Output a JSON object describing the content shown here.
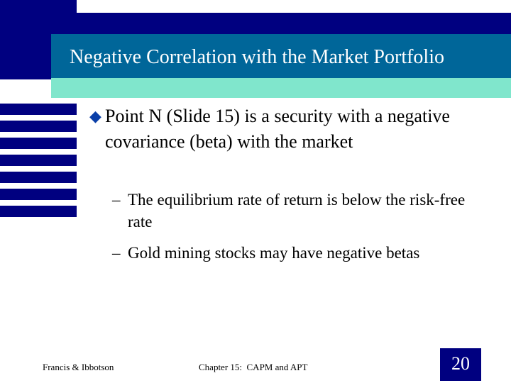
{
  "slide": {
    "title": "Negative Correlation with the Market Portfolio",
    "bullets": [
      {
        "text": "Point N (Slide 15) is a security with a negative covariance (beta) with the market",
        "subpoints": [
          "The equilibrium rate of return is below the risk-free rate",
          "Gold mining stocks may have negative betas"
        ]
      }
    ],
    "bullet_icon": "diamond-bullet-icon",
    "sub_bullet_marker": "–"
  },
  "footer": {
    "left": "Francis & Ibbotson",
    "center": "Chapter 15:  CAPM and APT",
    "page_number": "20"
  },
  "colors": {
    "navy": "#000080",
    "title_bg": "#006699",
    "accent_teal": "#80e6cc",
    "bullet": "#0a3fa8"
  }
}
